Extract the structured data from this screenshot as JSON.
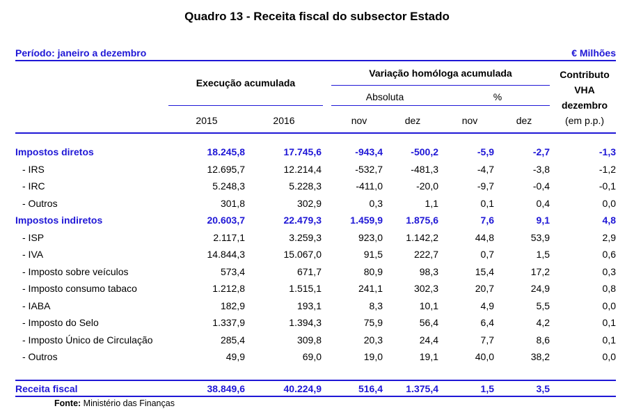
{
  "title": "Quadro 13 - Receita fiscal do subsector Estado",
  "period": "Período: janeiro a dezembro",
  "unit": "€ Milhões",
  "headers": {
    "execucao": "Execução acumulada",
    "variacao": "Variação homóloga acumulada",
    "absoluta": "Absoluta",
    "pct": "%",
    "contributo_1": "Contributo",
    "contributo_2": "VHA",
    "contributo_3": "dezembro",
    "contributo_4": "(em p.p.)",
    "y2015": "2015",
    "y2016": "2016",
    "nov_abs": "nov",
    "dez_abs": "dez",
    "nov_pct": "nov",
    "dez_pct": "dez"
  },
  "rows": [
    {
      "label": "Impostos diretos",
      "group": true,
      "v": [
        "18.245,8",
        "17.745,6",
        "-943,4",
        "-500,2",
        "-5,9",
        "-2,7",
        "-1,3"
      ]
    },
    {
      "label": "- IRS",
      "group": false,
      "v": [
        "12.695,7",
        "12.214,4",
        "-532,7",
        "-481,3",
        "-4,7",
        "-3,8",
        "-1,2"
      ]
    },
    {
      "label": "- IRC",
      "group": false,
      "v": [
        "5.248,3",
        "5.228,3",
        "-411,0",
        "-20,0",
        "-9,7",
        "-0,4",
        "-0,1"
      ]
    },
    {
      "label": "- Outros",
      "group": false,
      "v": [
        "301,8",
        "302,9",
        "0,3",
        "1,1",
        "0,1",
        "0,4",
        "0,0"
      ]
    },
    {
      "label": "Impostos indiretos",
      "group": true,
      "v": [
        "20.603,7",
        "22.479,3",
        "1.459,9",
        "1.875,6",
        "7,6",
        "9,1",
        "4,8"
      ]
    },
    {
      "label": "- ISP",
      "group": false,
      "v": [
        "2.117,1",
        "3.259,3",
        "923,0",
        "1.142,2",
        "44,8",
        "53,9",
        "2,9"
      ]
    },
    {
      "label": "- IVA",
      "group": false,
      "v": [
        "14.844,3",
        "15.067,0",
        "91,5",
        "222,7",
        "0,7",
        "1,5",
        "0,6"
      ]
    },
    {
      "label": "- Imposto sobre veículos",
      "group": false,
      "v": [
        "573,4",
        "671,7",
        "80,9",
        "98,3",
        "15,4",
        "17,2",
        "0,3"
      ]
    },
    {
      "label": "- Imposto consumo tabaco",
      "group": false,
      "v": [
        "1.212,8",
        "1.515,1",
        "241,1",
        "302,3",
        "20,7",
        "24,9",
        "0,8"
      ]
    },
    {
      "label": "- IABA",
      "group": false,
      "v": [
        "182,9",
        "193,1",
        "8,3",
        "10,1",
        "4,9",
        "5,5",
        "0,0"
      ]
    },
    {
      "label": "- Imposto do Selo",
      "group": false,
      "v": [
        "1.337,9",
        "1.394,3",
        "75,9",
        "56,4",
        "6,4",
        "4,2",
        "0,1"
      ]
    },
    {
      "label": "- Imposto Único de Circulação",
      "group": false,
      "v": [
        "285,4",
        "309,8",
        "20,3",
        "24,4",
        "7,7",
        "8,6",
        "0,1"
      ]
    },
    {
      "label": "- Outros",
      "group": false,
      "v": [
        "49,9",
        "69,0",
        "19,0",
        "19,1",
        "40,0",
        "38,2",
        "0,0"
      ]
    }
  ],
  "total": {
    "label": "Receita fiscal",
    "v": [
      "38.849,6",
      "40.224,9",
      "516,4",
      "1.375,4",
      "1,5",
      "3,5"
    ]
  },
  "fonte_label": "Fonte:",
  "fonte_text": " Ministério das Finanças"
}
